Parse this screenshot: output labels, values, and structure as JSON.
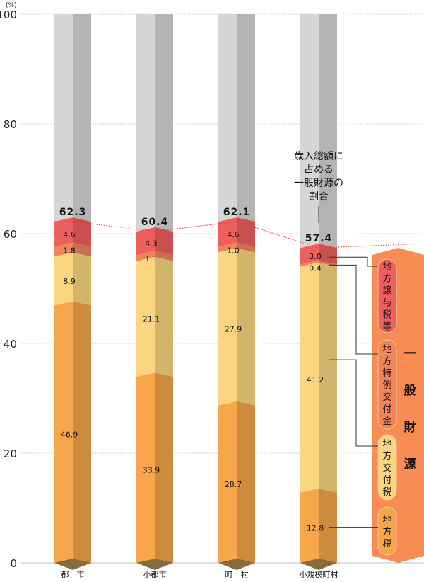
{
  "chart_data": {
    "type": "bar",
    "stacked": true,
    "unit_label": "(%)",
    "ylim": [
      0,
      100
    ],
    "yticks": [
      "0",
      "20",
      "40",
      "60",
      "80",
      "100"
    ],
    "grid": true,
    "categories": [
      "都　市",
      "小都市",
      "町　村",
      "小規模町村"
    ],
    "series": [
      {
        "name": "地方税",
        "values": [
          46.9,
          33.9,
          28.7,
          12.8
        ]
      },
      {
        "name": "地方交付税",
        "values": [
          8.9,
          21.1,
          27.9,
          41.2
        ]
      },
      {
        "name": "地方特例交付金",
        "values": [
          1.8,
          1.1,
          1.0,
          0.4
        ]
      },
      {
        "name": "地方譲与税等",
        "values": [
          4.6,
          4.3,
          4.6,
          3.0
        ]
      }
    ],
    "totals": [
      "62.3",
      "60.4",
      "62.1",
      "57.4"
    ],
    "annotation": [
      "歳入総額に",
      "占める",
      "一般財源の",
      "割合"
    ],
    "group_label": [
      "一",
      "般",
      "財",
      "源"
    ],
    "colors": {
      "地方税": "#f7a649",
      "地方交付税": "#fbd681",
      "地方特例交付金": "#f08558",
      "地方譲与税等": "#ef5f5d",
      "remainder": "#d6d6d6",
      "group_box": "#f98c52"
    }
  }
}
